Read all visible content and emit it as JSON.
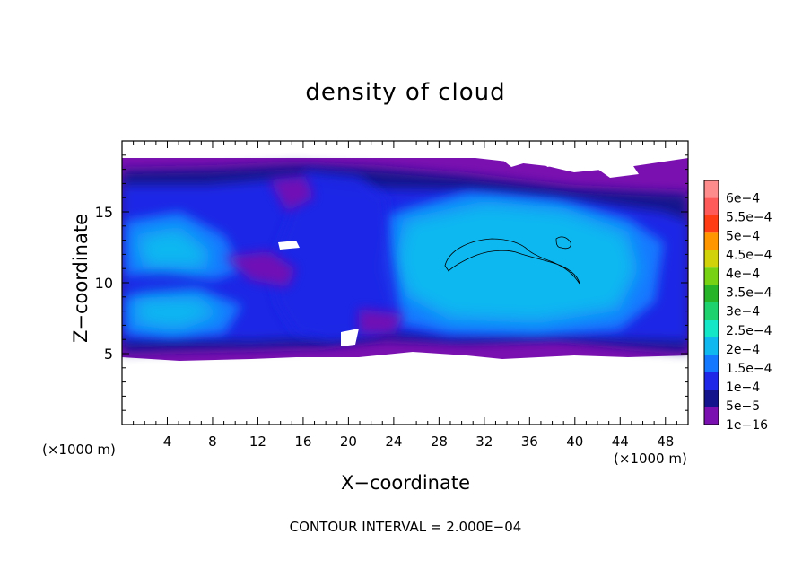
{
  "chart_data": {
    "type": "heatmap",
    "title": "density of cloud",
    "xlabel": "X−coordinate",
    "ylabel": "Z−coordinate",
    "x_unit": "(×1000 m)",
    "x_unit_right": "(×1000 m)",
    "footnote": "CONTOUR INTERVAL = 2.000E−04",
    "xlim": [
      0,
      50
    ],
    "ylim": [
      0,
      20
    ],
    "x_ticks": [
      4,
      8,
      12,
      16,
      20,
      24,
      28,
      32,
      36,
      40,
      44,
      48
    ],
    "y_ticks": [
      5,
      10,
      15
    ],
    "colorbar": {
      "levels": [
        "1e−16",
        "5e−5",
        "1e−4",
        "1.5e−4",
        "2e−4",
        "2.5e−4",
        "3e−4",
        "3.5e−4",
        "4e−4",
        "4.5e−4",
        "5e−4",
        "5.5e−4",
        "6e−4"
      ],
      "colors": [
        "#7a10b0",
        "#14148c",
        "#1e28e6",
        "#1478ff",
        "#10b8f0",
        "#14e6c8",
        "#1ed26e",
        "#28b428",
        "#78d214",
        "#d2d20a",
        "#ff9600",
        "#ff3c14",
        "#ff5a5a",
        "#ff8c8c"
      ]
    },
    "contour_levels_shown": [
      0.0002
    ]
  }
}
